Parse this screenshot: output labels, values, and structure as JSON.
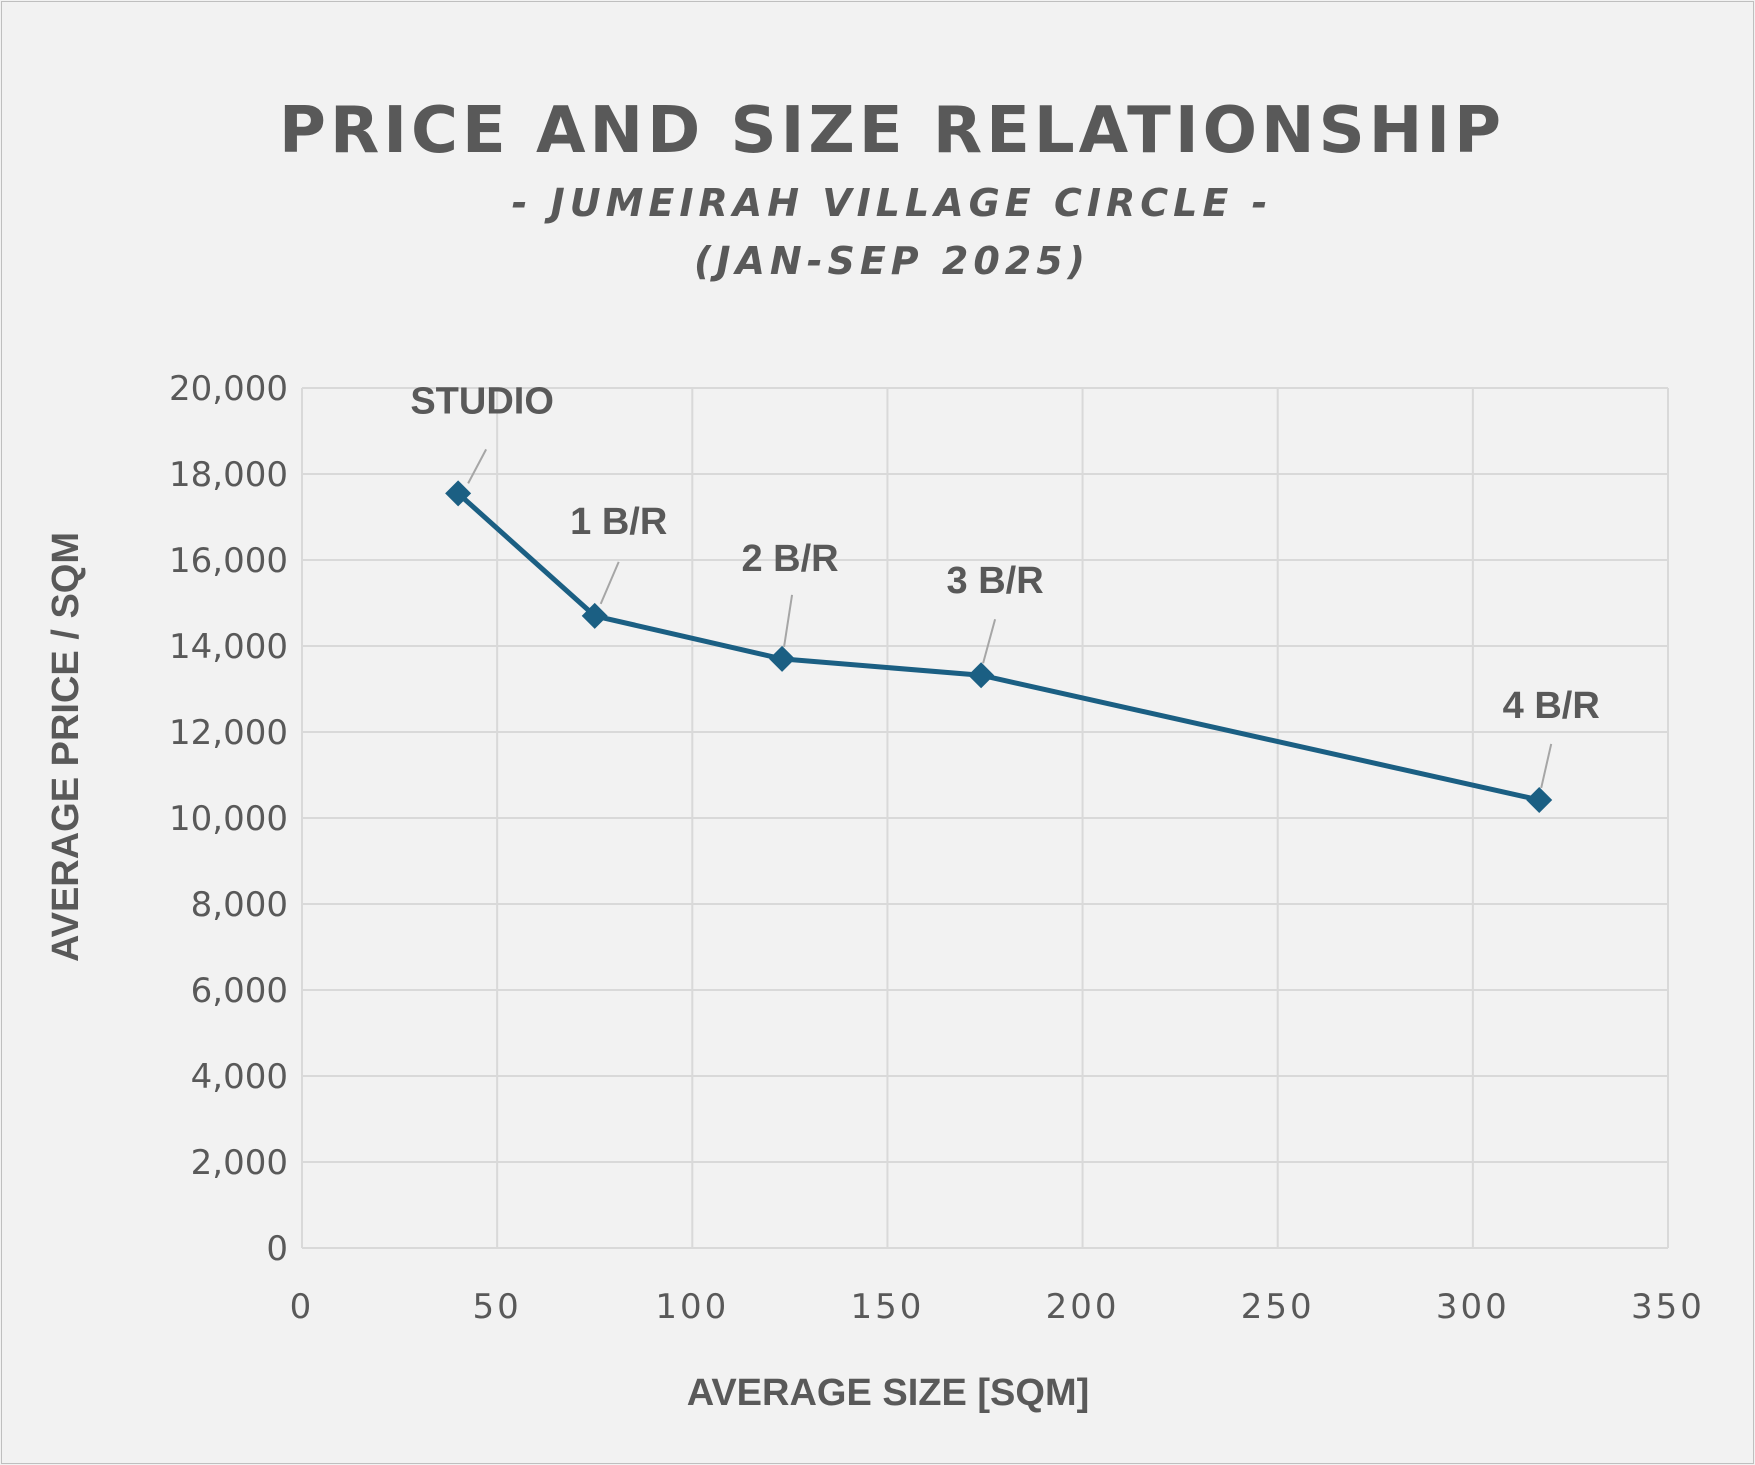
{
  "chart_data": {
    "type": "scatter",
    "title": "PRICE AND SIZE RELATIONSHIP",
    "subtitle_lines": [
      "- JUMEIRAH VILLAGE CIRCLE -",
      "(JAN-SEP 2025)"
    ],
    "xlabel": "AVERAGE SIZE [SQM]",
    "ylabel": "AVERAGE PRICE / SQM",
    "xlim": [
      0,
      350
    ],
    "ylim": [
      0,
      20000
    ],
    "x_ticks": [
      0,
      50,
      100,
      150,
      200,
      250,
      300,
      350
    ],
    "x_tick_labels": [
      "0",
      "50",
      "100",
      "150",
      "200",
      "250",
      "300",
      "350"
    ],
    "y_ticks": [
      0,
      2000,
      4000,
      6000,
      8000,
      10000,
      12000,
      14000,
      16000,
      18000,
      20000
    ],
    "y_tick_labels": [
      "0",
      "2,000",
      "4,000",
      "6,000",
      "8,000",
      "10,000",
      "12,000",
      "14,000",
      "16,000",
      "18,000",
      "20,000"
    ],
    "grid": true,
    "line_color": "#1b5f83",
    "points": [
      {
        "label": "STUDIO",
        "x": 40,
        "y": 17550
      },
      {
        "label": "1 B/R",
        "x": 75,
        "y": 14700
      },
      {
        "label": "2 B/R",
        "x": 123,
        "y": 13700
      },
      {
        "label": "3 B/R",
        "x": 174,
        "y": 13320
      },
      {
        "label": "4 B/R",
        "x": 317,
        "y": 10420
      }
    ]
  }
}
